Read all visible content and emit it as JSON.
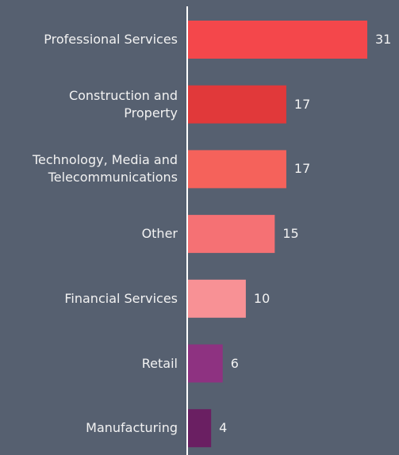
{
  "chart_data": {
    "type": "bar",
    "orientation": "horizontal",
    "categories": [
      "Professional Services",
      "Construction and\nProperty",
      "Technology, Media and\nTelecommunications",
      "Other",
      "Financial Services",
      "Retail",
      "Manufacturing"
    ],
    "values": [
      31,
      17,
      17,
      15,
      10,
      6,
      4
    ],
    "colors": [
      "#f4474b",
      "#e1393a",
      "#f5625b",
      "#f57174",
      "#f89195",
      "#8e3281",
      "#6a1f62"
    ]
  }
}
